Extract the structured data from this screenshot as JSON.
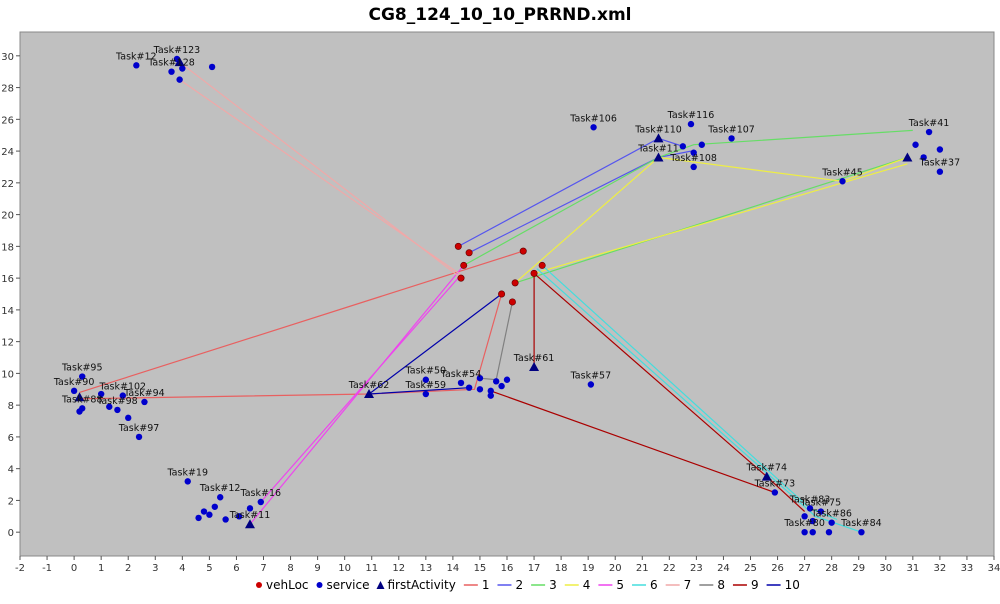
{
  "chart_data": {
    "type": "scatter",
    "title": "CG8_124_10_10_PRRND.xml",
    "xlabel": "",
    "ylabel": "",
    "xlim": [
      -2,
      34
    ],
    "ylim": [
      -1.5,
      31.5
    ],
    "x_ticks": [
      "-2",
      "-1",
      "0",
      "1",
      "2",
      "3",
      "4",
      "5",
      "6",
      "7",
      "8",
      "9",
      "10",
      "11",
      "12",
      "13",
      "14",
      "15",
      "16",
      "17",
      "18",
      "19",
      "20",
      "21",
      "22",
      "23",
      "24",
      "25",
      "26",
      "27",
      "28",
      "29",
      "30",
      "31",
      "32",
      "33",
      "34"
    ],
    "y_ticks": [
      "0",
      "2",
      "4",
      "6",
      "8",
      "10",
      "12",
      "14",
      "16",
      "18",
      "20",
      "22",
      "24",
      "26",
      "28",
      "30"
    ],
    "grid": false,
    "legend_position": "bottom",
    "legend": [
      "vehLoc",
      "service",
      "firstActivity",
      "1",
      "2",
      "3",
      "4",
      "5",
      "6",
      "7",
      "8",
      "9",
      "10"
    ],
    "colors": {
      "plot_bg": "#c0c0c0",
      "vehLoc": "#cc0000",
      "service": "#0000cc",
      "firstActivity": "#000080",
      "route_1": "#e86060",
      "route_2": "#5555ee",
      "route_3": "#66dd66",
      "route_4": "#eeee44",
      "route_5": "#ee44ee",
      "route_6": "#44dddd",
      "route_7": "#f0a8a8",
      "route_8": "#808080",
      "route_9": "#aa0000",
      "route_10": "#0000aa"
    },
    "vehLoc": [
      [
        14.2,
        18.0
      ],
      [
        14.6,
        17.6
      ],
      [
        14.4,
        16.8
      ],
      [
        14.3,
        16.0
      ],
      [
        16.6,
        17.7
      ],
      [
        17.3,
        16.8
      ],
      [
        17.0,
        16.3
      ],
      [
        16.3,
        15.7
      ],
      [
        15.8,
        15.0
      ],
      [
        16.2,
        14.5
      ]
    ],
    "service": [
      {
        "x": 0.3,
        "y": 9.8,
        "label": "Task#95"
      },
      {
        "x": 0.0,
        "y": 8.9,
        "label": "Task#90"
      },
      {
        "x": 1.0,
        "y": 8.7,
        "label": ""
      },
      {
        "x": 1.8,
        "y": 8.6,
        "label": "Task#102"
      },
      {
        "x": 2.6,
        "y": 8.2,
        "label": "Task#94"
      },
      {
        "x": 0.3,
        "y": 7.8,
        "label": "Task#88"
      },
      {
        "x": 0.2,
        "y": 7.6,
        "label": ""
      },
      {
        "x": 1.3,
        "y": 7.9,
        "label": ""
      },
      {
        "x": 1.6,
        "y": 7.7,
        "label": "Task#98"
      },
      {
        "x": 2.0,
        "y": 7.2,
        "label": ""
      },
      {
        "x": 2.4,
        "y": 6.0,
        "label": "Task#97"
      },
      {
        "x": 4.2,
        "y": 3.2,
        "label": "Task#19"
      },
      {
        "x": 5.4,
        "y": 2.2,
        "label": "Task#12"
      },
      {
        "x": 6.9,
        "y": 1.9,
        "label": "Task#16"
      },
      {
        "x": 5.2,
        "y": 1.6,
        "label": ""
      },
      {
        "x": 4.8,
        "y": 1.3,
        "label": ""
      },
      {
        "x": 4.6,
        "y": 0.9,
        "label": ""
      },
      {
        "x": 5.0,
        "y": 1.1,
        "label": ""
      },
      {
        "x": 5.6,
        "y": 0.8,
        "label": ""
      },
      {
        "x": 6.1,
        "y": 1.0,
        "label": ""
      },
      {
        "x": 6.5,
        "y": 1.5,
        "label": ""
      },
      {
        "x": 2.3,
        "y": 29.4,
        "label": "Task#12"
      },
      {
        "x": 3.8,
        "y": 29.8,
        "label": "Task#123"
      },
      {
        "x": 5.1,
        "y": 29.3,
        "label": ""
      },
      {
        "x": 3.6,
        "y": 29.0,
        "label": "Task#128"
      },
      {
        "x": 3.9,
        "y": 28.5,
        "label": ""
      },
      {
        "x": 4.0,
        "y": 29.2,
        "label": ""
      },
      {
        "x": 19.2,
        "y": 25.5,
        "label": "Task#106"
      },
      {
        "x": 22.8,
        "y": 25.7,
        "label": "Task#116"
      },
      {
        "x": 24.3,
        "y": 24.8,
        "label": "Task#107"
      },
      {
        "x": 22.5,
        "y": 24.3,
        "label": ""
      },
      {
        "x": 22.9,
        "y": 23.9,
        "label": ""
      },
      {
        "x": 23.2,
        "y": 24.4,
        "label": ""
      },
      {
        "x": 22.9,
        "y": 23.0,
        "label": "Task#108"
      },
      {
        "x": 31.1,
        "y": 24.4,
        "label": ""
      },
      {
        "x": 31.6,
        "y": 25.2,
        "label": "Task#41"
      },
      {
        "x": 32.0,
        "y": 24.1,
        "label": ""
      },
      {
        "x": 31.4,
        "y": 23.6,
        "label": ""
      },
      {
        "x": 32.0,
        "y": 22.7,
        "label": "Task#37"
      },
      {
        "x": 28.4,
        "y": 22.1,
        "label": "Task#45"
      },
      {
        "x": 14.3,
        "y": 9.4,
        "label": "Task#54"
      },
      {
        "x": 15.0,
        "y": 9.7,
        "label": ""
      },
      {
        "x": 15.6,
        "y": 9.5,
        "label": ""
      },
      {
        "x": 16.0,
        "y": 9.6,
        "label": ""
      },
      {
        "x": 14.6,
        "y": 9.1,
        "label": ""
      },
      {
        "x": 15.0,
        "y": 9.0,
        "label": ""
      },
      {
        "x": 15.4,
        "y": 8.9,
        "label": ""
      },
      {
        "x": 15.8,
        "y": 9.2,
        "label": ""
      },
      {
        "x": 15.4,
        "y": 8.6,
        "label": ""
      },
      {
        "x": 13.0,
        "y": 8.7,
        "label": "Task#59"
      },
      {
        "x": 13.0,
        "y": 9.6,
        "label": "Task#50"
      },
      {
        "x": 19.1,
        "y": 9.3,
        "label": "Task#57"
      },
      {
        "x": 25.9,
        "y": 2.5,
        "label": "Task#73"
      },
      {
        "x": 27.2,
        "y": 1.5,
        "label": "Task#83"
      },
      {
        "x": 27.6,
        "y": 1.3,
        "label": "Task#75"
      },
      {
        "x": 27.0,
        "y": 1.0,
        "label": ""
      },
      {
        "x": 27.3,
        "y": 0.7,
        "label": ""
      },
      {
        "x": 28.0,
        "y": 0.6,
        "label": "Task#86"
      },
      {
        "x": 27.0,
        "y": 0.0,
        "label": "Task#80"
      },
      {
        "x": 27.3,
        "y": 0.0,
        "label": ""
      },
      {
        "x": 27.9,
        "y": 0.0,
        "label": ""
      },
      {
        "x": 29.1,
        "y": 0.0,
        "label": "Task#84"
      }
    ],
    "firstActivity": [
      {
        "x": 6.5,
        "y": 0.5,
        "label": "Task#11"
      },
      {
        "x": 3.9,
        "y": 29.6,
        "label": ""
      },
      {
        "x": 21.6,
        "y": 24.8,
        "label": "Task#110"
      },
      {
        "x": 21.6,
        "y": 23.6,
        "label": "Task#11"
      },
      {
        "x": 30.8,
        "y": 23.6,
        "label": ""
      },
      {
        "x": 10.9,
        "y": 8.7,
        "label": "Task#62"
      },
      {
        "x": 17.0,
        "y": 10.4,
        "label": "Task#61"
      },
      {
        "x": 25.6,
        "y": 3.5,
        "label": "Task#74"
      },
      {
        "x": 0.2,
        "y": 8.5,
        "label": ""
      }
    ],
    "routes": [
      {
        "name": "1",
        "points": [
          [
            16.6,
            17.7
          ],
          [
            0.2,
            8.8
          ]
        ]
      },
      {
        "name": "1",
        "points": [
          [
            0.2,
            8.4
          ],
          [
            10.9,
            8.7
          ],
          [
            14.8,
            9.0
          ],
          [
            15.8,
            15.0
          ]
        ]
      },
      {
        "name": "2",
        "points": [
          [
            14.2,
            18.0
          ],
          [
            21.6,
            24.8
          ],
          [
            22.5,
            24.3
          ]
        ]
      },
      {
        "name": "2",
        "points": [
          [
            14.6,
            17.6
          ],
          [
            21.6,
            23.6
          ],
          [
            22.8,
            24.0
          ]
        ]
      },
      {
        "name": "3",
        "points": [
          [
            14.4,
            16.8
          ],
          [
            21.6,
            23.6
          ],
          [
            22.9,
            24.4
          ],
          [
            31.0,
            25.3
          ]
        ]
      },
      {
        "name": "3",
        "points": [
          [
            16.3,
            15.7
          ],
          [
            30.8,
            23.6
          ]
        ]
      },
      {
        "name": "4",
        "points": [
          [
            16.3,
            15.7
          ],
          [
            21.6,
            23.6
          ]
        ]
      },
      {
        "name": "4",
        "points": [
          [
            17.0,
            16.3
          ],
          [
            30.8,
            23.2
          ]
        ]
      },
      {
        "name": "4",
        "points": [
          [
            21.6,
            23.6
          ],
          [
            28.4,
            22.1
          ],
          [
            30.8,
            23.6
          ]
        ]
      },
      {
        "name": "5",
        "points": [
          [
            14.4,
            16.8
          ],
          [
            6.5,
            0.5
          ]
        ]
      },
      {
        "name": "5",
        "points": [
          [
            14.3,
            16.2
          ],
          [
            6.9,
            1.9
          ]
        ]
      },
      {
        "name": "6",
        "points": [
          [
            17.3,
            16.8
          ],
          [
            27.2,
            1.5
          ],
          [
            28.2,
            0.8
          ]
        ]
      },
      {
        "name": "6",
        "points": [
          [
            17.1,
            16.6
          ],
          [
            27.4,
            1.0
          ],
          [
            29.1,
            0.0
          ]
        ]
      },
      {
        "name": "7",
        "points": [
          [
            14.3,
            16.0
          ],
          [
            3.9,
            29.6
          ]
        ]
      },
      {
        "name": "7",
        "points": [
          [
            14.3,
            16.2
          ],
          [
            3.9,
            28.5
          ]
        ]
      },
      {
        "name": "8",
        "points": [
          [
            16.2,
            14.5
          ],
          [
            15.6,
            9.6
          ],
          [
            15.0,
            9.7
          ]
        ]
      },
      {
        "name": "9",
        "points": [
          [
            17.0,
            16.3
          ],
          [
            17.0,
            10.4
          ]
        ]
      },
      {
        "name": "9",
        "points": [
          [
            17.0,
            16.3
          ],
          [
            25.6,
            3.5
          ],
          [
            27.0,
            1.3
          ]
        ]
      },
      {
        "name": "9",
        "points": [
          [
            15.4,
            8.9
          ],
          [
            25.9,
            2.5
          ]
        ]
      },
      {
        "name": "10",
        "points": [
          [
            15.8,
            15.0
          ],
          [
            10.9,
            8.7
          ],
          [
            14.6,
            9.1
          ]
        ]
      }
    ]
  }
}
